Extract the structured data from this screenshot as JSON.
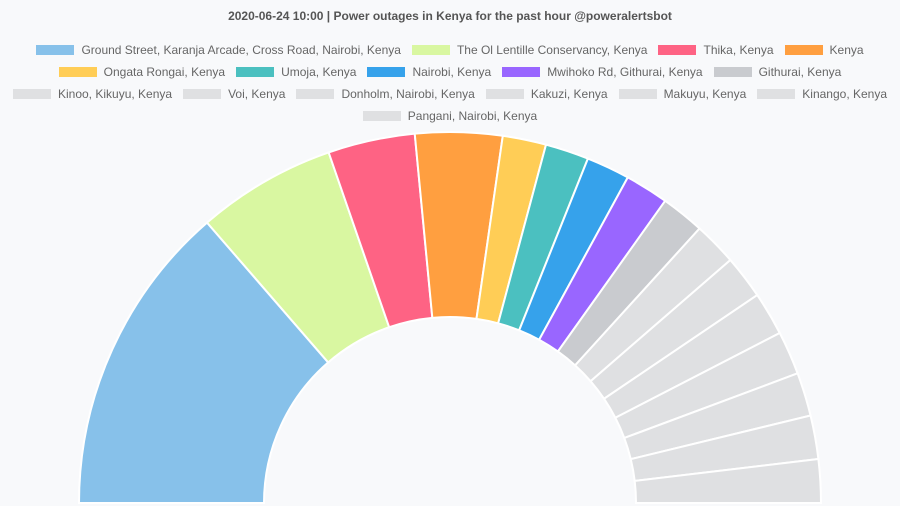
{
  "chart_data": {
    "type": "pie",
    "variant": "half-doughnut",
    "title": "2020-06-24 10:00 | Power outages in Kenya for the past hour @poweralertsbot",
    "legend_position": "top",
    "slices": [
      {
        "label": "Ground Street, Karanja Arcade, Cross Road, Nairobi, Kenya",
        "value": 18,
        "color": "#87c1ea"
      },
      {
        "label": "The Ol Lentille Conservancy, Kenya",
        "value": 8,
        "color": "#d9f7a1"
      },
      {
        "label": "Thika, Kenya",
        "value": 5,
        "color": "#fe6384"
      },
      {
        "label": "Kenya",
        "value": 5,
        "color": "#ff9f40"
      },
      {
        "label": "Ongata Rongai, Kenya",
        "value": 2.5,
        "color": "#ffcd56"
      },
      {
        "label": "Umoja, Kenya",
        "value": 2.5,
        "color": "#4bc0c0"
      },
      {
        "label": "Nairobi, Kenya",
        "value": 2.5,
        "color": "#36a2eb"
      },
      {
        "label": "Mwihoko Rd, Githurai, Kenya",
        "value": 2.5,
        "color": "#9966ff"
      },
      {
        "label": "Githurai, Kenya",
        "value": 2.5,
        "color": "#c9cbcf"
      },
      {
        "label": "Kinoo, Kikuyu, Kenya",
        "value": 2.5,
        "color": "#dfe0e2"
      },
      {
        "label": "Voi, Kenya",
        "value": 2.5,
        "color": "#dfe0e2"
      },
      {
        "label": "Donholm, Nairobi, Kenya",
        "value": 2.5,
        "color": "#dfe0e2"
      },
      {
        "label": "Kakuzi, Kenya",
        "value": 2.5,
        "color": "#dfe0e2"
      },
      {
        "label": "Makuyu, Kenya",
        "value": 2.5,
        "color": "#dfe0e2"
      },
      {
        "label": "Kinango, Kenya",
        "value": 2.5,
        "color": "#dfe0e2"
      },
      {
        "label": "Pangani, Nairobi, Kenya",
        "value": 2.5,
        "color": "#dfe0e2"
      }
    ]
  }
}
